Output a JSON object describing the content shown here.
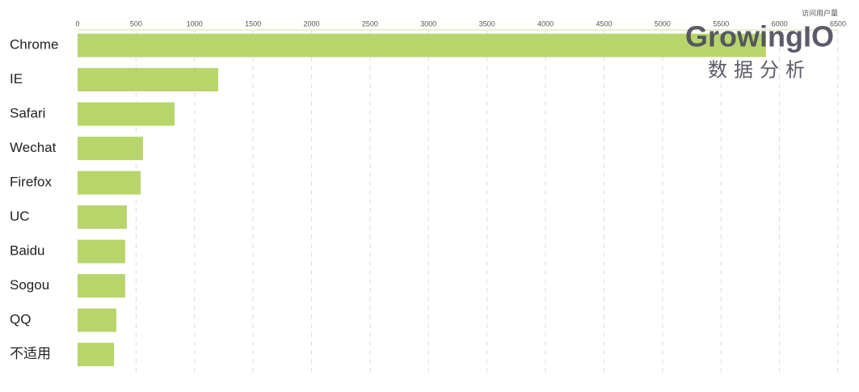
{
  "chart_data": {
    "type": "bar",
    "orientation": "horizontal",
    "x_label": "访问用户量",
    "categories": [
      "Chrome",
      "IE",
      "Safari",
      "Wechat",
      "Firefox",
      "UC",
      "Baidu",
      "Sogou",
      "QQ",
      "不适用"
    ],
    "values": [
      5884,
      1202,
      829,
      559,
      539,
      421,
      407,
      407,
      331,
      311
    ],
    "color": "#b8d56b",
    "xlim": [
      0,
      6500
    ],
    "xticks": [
      0,
      500,
      1000,
      1500,
      2000,
      2500,
      3000,
      3500,
      4000,
      4500,
      5000,
      5500,
      6000,
      6500
    ],
    "grid": true
  },
  "watermark": {
    "brand": "GrowingIO",
    "tagline": "数据分析"
  }
}
